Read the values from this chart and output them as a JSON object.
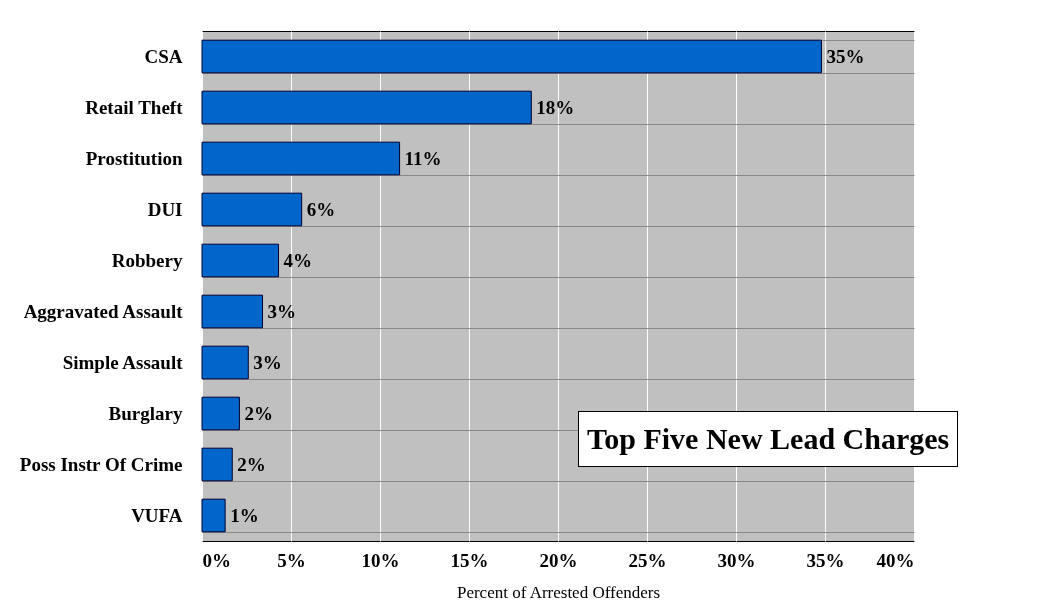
{
  "chart_data": {
    "type": "bar",
    "orientation": "horizontal",
    "xlabel": "Percent of Arrested Offenders",
    "categories": [
      "CSA",
      "Retail Theft",
      "Prostitution",
      "DUI",
      "Robbery",
      "Aggravated Assault",
      "Simple Assault",
      "Burglary",
      "Poss Instr Of Crime",
      "VUFA"
    ],
    "values": [
      34.8,
      18.5,
      11.1,
      5.6,
      4.3,
      3.4,
      2.6,
      2.1,
      1.7,
      1.3
    ],
    "value_labels": [
      "35%",
      "18%",
      "11%",
      "6%",
      "4%",
      "3%",
      "3%",
      "2%",
      "2%",
      "1%"
    ],
    "color": "#0066cc",
    "xlim": [
      0,
      40
    ],
    "xticks": [
      {
        "value": 0,
        "label": "0%"
      },
      {
        "value": 5,
        "label": "5%"
      },
      {
        "value": 10,
        "label": "10%"
      },
      {
        "value": 15,
        "label": "15%"
      },
      {
        "value": 20,
        "label": "20%"
      },
      {
        "value": 25,
        "label": "25%"
      },
      {
        "value": 30,
        "label": "30%"
      },
      {
        "value": 35,
        "label": "35%"
      },
      {
        "value": 40,
        "label": "40%"
      }
    ],
    "grid": true,
    "annotations": [
      "Top Five New Lead Charges"
    ]
  }
}
